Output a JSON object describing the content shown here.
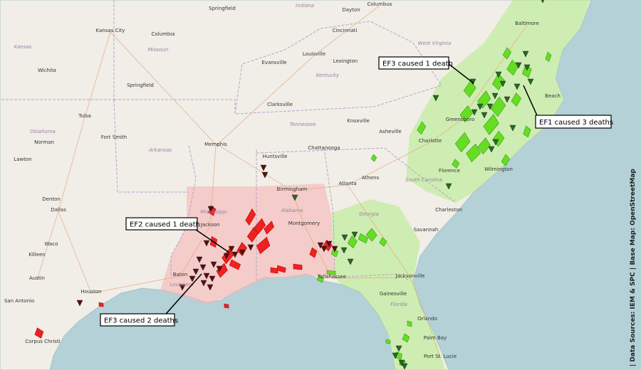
{
  "cities": [
    "Kansas City",
    "Springfield",
    "Columbus",
    "Dayton",
    "Cincinnati",
    "Columbia",
    "Louisville",
    "Lexington",
    "Evansville",
    "Baltimore",
    "Wichita",
    "Springfield",
    "Clarksville",
    "Knoxville",
    "Asheville",
    "Greensboro",
    "Charlotte",
    "Tulsa",
    "Fort Smith",
    "Norman",
    "Lawton",
    "Memphis",
    "Huntsville",
    "Chattanooga",
    "Atlanta",
    "Athens",
    "Birmingham",
    "Florence",
    "Wilmington",
    "Denton",
    "Dallas",
    "Waco",
    "Killeen",
    "Austin",
    "San Antonio",
    "Houston",
    "Jackson",
    "Montgomery",
    "Savannah",
    "Charleston",
    "Tallahassee",
    "Jacksonville",
    "Gainesville",
    "Orlando",
    "Palm Bay",
    "Port St. Lucie",
    "Baton",
    "Corpus Christi",
    "Beach"
  ],
  "regions": [
    "Indiana",
    "Missouri",
    "Kansas",
    "Kentucky",
    "West Virginia",
    "Oklahoma",
    "Arkansas",
    "Tennessee",
    "South Carolina",
    "Mississippi",
    "Alabama",
    "Georgia",
    "Louisiana",
    "Florida"
  ],
  "annotations": [
    "EF3 caused 1 death",
    "EF1 caused 3 deaths",
    "EF2 caused 1 death",
    "EF3 caused 2 deaths"
  ],
  "source": "| Data Sources: IEM & SPC | Base Map: OpenStreetMap"
}
